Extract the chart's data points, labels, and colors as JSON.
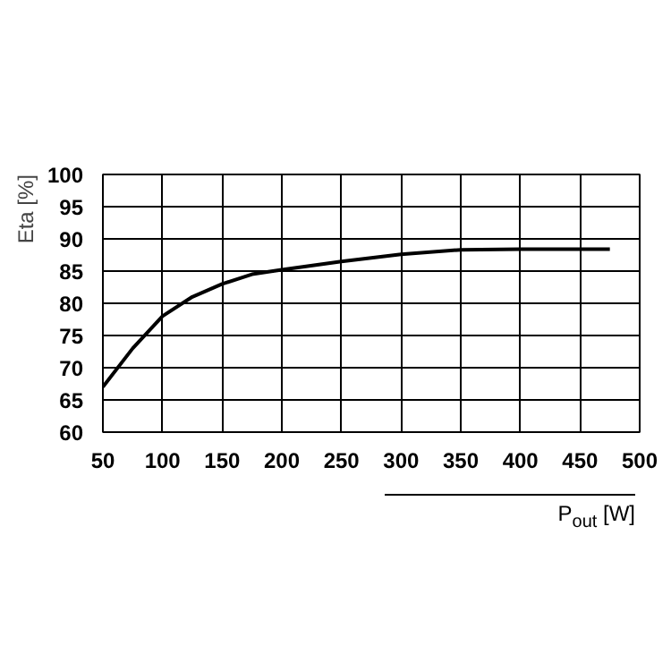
{
  "chart_data": {
    "type": "line",
    "xlabel": "P$_{out}$ [W]",
    "ylabel": "Eta [%]",
    "x": [
      50,
      75,
      100,
      125,
      150,
      175,
      200,
      250,
      300,
      350,
      400,
      450,
      475
    ],
    "values": [
      67,
      73,
      78,
      81,
      83,
      84.5,
      85.2,
      86.5,
      87.6,
      88.3,
      88.4,
      88.4,
      88.4
    ],
    "color": "#000000",
    "xlim": [
      50,
      500
    ],
    "ylim": [
      60,
      100
    ],
    "xticks": [
      50,
      100,
      150,
      200,
      250,
      300,
      350,
      400,
      450,
      500
    ],
    "yticks": [
      60,
      65,
      70,
      75,
      80,
      85,
      90,
      95,
      100
    ],
    "grid": true,
    "line_style": "solid"
  }
}
